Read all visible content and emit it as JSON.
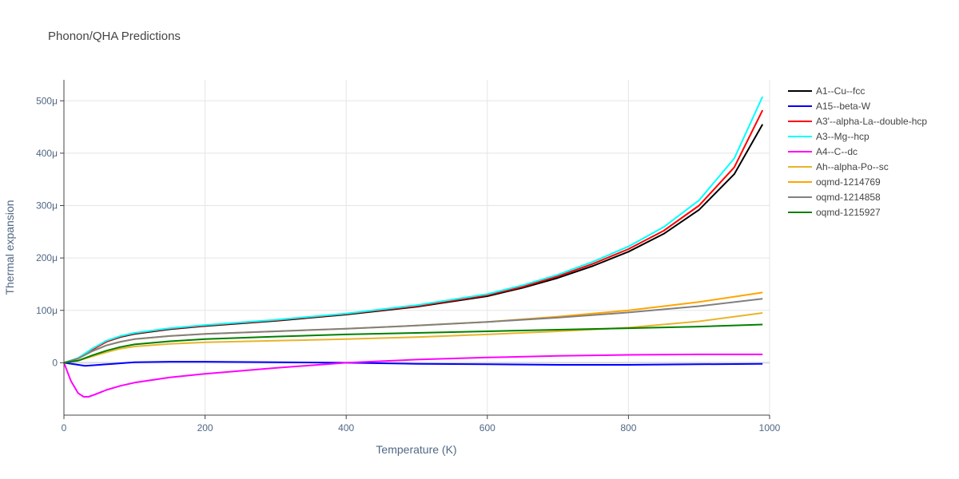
{
  "chart_data": {
    "type": "line",
    "title": "Phonon/QHA Predictions",
    "xlabel": "Temperature (K)",
    "ylabel": "Thermal expansion",
    "xlim": [
      0,
      1000
    ],
    "ylim": [
      -100,
      540
    ],
    "y_unit": "μ",
    "grid": true,
    "legend": "right",
    "x_ticks": [
      0,
      200,
      400,
      600,
      800,
      1000
    ],
    "y_ticks": [
      0,
      100,
      200,
      300,
      400,
      500
    ],
    "y_tick_labels": [
      "0",
      "100μ",
      "200μ",
      "300μ",
      "400μ",
      "500μ"
    ],
    "series": [
      {
        "name": "A1--Cu--fcc",
        "color": "#000000",
        "x": [
          0,
          20,
          40,
          60,
          80,
          100,
          150,
          200,
          300,
          400,
          500,
          600,
          650,
          700,
          750,
          800,
          850,
          900,
          950,
          990
        ],
        "y": [
          0,
          8,
          25,
          40,
          49,
          55,
          64,
          70,
          80,
          92,
          107,
          127,
          143,
          162,
          185,
          212,
          246,
          292,
          360,
          455
        ]
      },
      {
        "name": "A15--beta-W",
        "color": "#0000ff",
        "x": [
          0,
          15,
          30,
          50,
          70,
          100,
          150,
          200,
          300,
          400,
          500,
          600,
          700,
          800,
          900,
          990
        ],
        "y": [
          0,
          -3,
          -6,
          -4,
          -2,
          1,
          2,
          2,
          1,
          0,
          -2,
          -3,
          -4,
          -4,
          -3,
          -2
        ]
      },
      {
        "name": "A3'--alpha-La--double-hcp",
        "color": "#ff0000",
        "x": [
          0,
          20,
          40,
          60,
          80,
          100,
          150,
          200,
          300,
          400,
          500,
          600,
          650,
          700,
          750,
          800,
          850,
          900,
          950,
          990
        ],
        "y": [
          0,
          8,
          25,
          40,
          50,
          56,
          65,
          71,
          81,
          93,
          108,
          129,
          145,
          165,
          189,
          217,
          252,
          300,
          373,
          482
        ]
      },
      {
        "name": "A3--Mg--hcp",
        "color": "#00ffff",
        "x": [
          0,
          20,
          40,
          60,
          80,
          100,
          150,
          200,
          300,
          400,
          500,
          600,
          650,
          700,
          750,
          800,
          850,
          900,
          950,
          990
        ],
        "y": [
          0,
          9,
          27,
          42,
          51,
          57,
          66,
          72,
          82,
          94,
          110,
          131,
          148,
          168,
          193,
          222,
          259,
          310,
          390,
          508
        ]
      },
      {
        "name": "A4--C--dc",
        "color": "#ff00ff",
        "x": [
          0,
          10,
          20,
          28,
          35,
          45,
          60,
          80,
          100,
          150,
          200,
          300,
          400,
          500,
          600,
          700,
          800,
          900,
          990
        ],
        "y": [
          0,
          -35,
          -58,
          -65,
          -65,
          -60,
          -52,
          -44,
          -38,
          -28,
          -21,
          -10,
          0,
          6,
          10,
          13,
          15,
          16,
          16
        ]
      },
      {
        "name": "Ah--alpha-Po--sc",
        "color": "#e8b42a",
        "x": [
          0,
          20,
          40,
          60,
          80,
          100,
          150,
          200,
          300,
          400,
          500,
          600,
          700,
          800,
          900,
          990
        ],
        "y": [
          0,
          4,
          12,
          20,
          27,
          31,
          36,
          39,
          42,
          45,
          49,
          54,
          60,
          67,
          79,
          95
        ]
      },
      {
        "name": "oqmd-1214769",
        "color": "#ffa500",
        "x": [
          0,
          20,
          40,
          60,
          80,
          100,
          150,
          200,
          300,
          400,
          500,
          600,
          700,
          800,
          900,
          990
        ],
        "y": [
          0,
          8,
          22,
          33,
          40,
          45,
          51,
          55,
          60,
          65,
          71,
          78,
          88,
          100,
          116,
          134
        ]
      },
      {
        "name": "oqmd-1214858",
        "color": "#808080",
        "x": [
          0,
          20,
          40,
          60,
          80,
          100,
          150,
          200,
          300,
          400,
          500,
          600,
          700,
          800,
          900,
          990
        ],
        "y": [
          0,
          8,
          22,
          33,
          40,
          45,
          51,
          55,
          60,
          65,
          71,
          78,
          86,
          96,
          108,
          122
        ]
      },
      {
        "name": "oqmd-1215927",
        "color": "#008000",
        "x": [
          0,
          20,
          40,
          60,
          80,
          100,
          150,
          200,
          300,
          400,
          500,
          600,
          700,
          800,
          900,
          990
        ],
        "y": [
          0,
          4,
          14,
          23,
          30,
          35,
          41,
          45,
          50,
          54,
          57,
          60,
          63,
          66,
          69,
          73
        ]
      }
    ]
  }
}
